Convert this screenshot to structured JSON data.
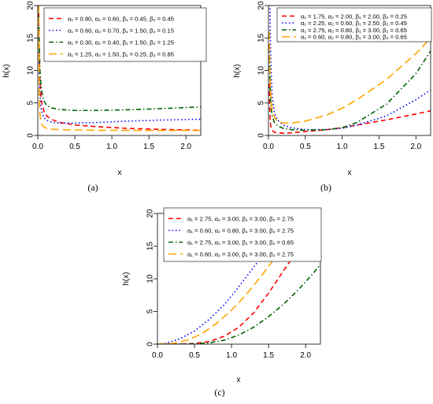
{
  "chart_data": [
    {
      "type": "line",
      "caption": "(a)",
      "xlabel": "x",
      "ylabel": "h(x)",
      "xlim": [
        0,
        2.2
      ],
      "ylim": [
        0,
        20
      ],
      "xticks": [
        "0.0",
        "0.5",
        "1.0",
        "1.5",
        "2.0"
      ],
      "yticks": [
        "0",
        "5",
        "10",
        "15",
        "20"
      ],
      "legend_position": "top-right",
      "series": [
        {
          "name": "α₁ = 0.80, α₂ = 0.60, β₁ = 0.45, β₂ = 0.45",
          "color": "#ff0000",
          "style": "dashed",
          "x": [
            0.01,
            0.02,
            0.03,
            0.05,
            0.08,
            0.12,
            0.2,
            0.3,
            0.5,
            0.8,
            1.2,
            1.6,
            2.0,
            2.2
          ],
          "y": [
            20,
            12,
            8,
            5.2,
            3.8,
            3.0,
            2.4,
            2.0,
            1.6,
            1.35,
            1.1,
            0.95,
            0.85,
            0.8
          ]
        },
        {
          "name": "α₁ = 0.60, α₂ = 0.70, β₁ = 1.50, β₂ = 0.15",
          "color": "#0000ff",
          "style": "dotted",
          "x": [
            0.01,
            0.02,
            0.03,
            0.05,
            0.08,
            0.12,
            0.2,
            0.3,
            0.5,
            0.8,
            1.2,
            1.6,
            2.0,
            2.2
          ],
          "y": [
            20,
            10,
            6,
            3.8,
            2.8,
            2.3,
            2.0,
            1.9,
            1.9,
            2.0,
            2.2,
            2.35,
            2.45,
            2.5
          ]
        },
        {
          "name": "α₁ = 0.30, α₂ = 0.40, β₁ = 1.50, β₂ = 1.25",
          "color": "#006400",
          "style": "dashdot",
          "x": [
            0.01,
            0.02,
            0.03,
            0.05,
            0.08,
            0.12,
            0.2,
            0.3,
            0.5,
            0.8,
            1.2,
            1.6,
            2.0,
            2.2
          ],
          "y": [
            20,
            14,
            10,
            7,
            5.4,
            4.6,
            4.2,
            4.0,
            3.85,
            3.85,
            3.95,
            4.1,
            4.3,
            4.4
          ]
        },
        {
          "name": "α₁ = 1.25, α₂ = 1.50, β₁ = 0.25, β₂ = 0.85",
          "color": "#ffa500",
          "style": "longdash",
          "x": [
            0.01,
            0.02,
            0.03,
            0.05,
            0.08,
            0.12,
            0.2,
            0.3,
            0.5,
            0.8,
            1.2,
            1.6,
            2.0,
            2.2
          ],
          "y": [
            20,
            6,
            3,
            1.8,
            1.3,
            1.1,
            0.95,
            0.9,
            0.85,
            0.8,
            0.78,
            0.77,
            0.76,
            0.76
          ]
        }
      ]
    },
    {
      "type": "line",
      "caption": "(b)",
      "xlabel": "x",
      "ylabel": "h(x)",
      "xlim": [
        0,
        2.2
      ],
      "ylim": [
        0,
        20
      ],
      "xticks": [
        "0.0",
        "0.5",
        "1.0",
        "1.5",
        "2.0"
      ],
      "yticks": [
        "0",
        "5",
        "10",
        "15",
        "20"
      ],
      "legend_position": "top-right",
      "series": [
        {
          "name": "α₁ = 1.75, α₂ = 2.00, β₁ = 2.00, β₂ = 0.25",
          "color": "#ff0000",
          "style": "dashed",
          "x": [
            0.01,
            0.02,
            0.03,
            0.05,
            0.08,
            0.12,
            0.2,
            0.3,
            0.5,
            0.8,
            1.0,
            1.2,
            1.6,
            2.0,
            2.2
          ],
          "y": [
            8,
            3,
            1.5,
            0.8,
            0.5,
            0.4,
            0.35,
            0.4,
            0.6,
            0.9,
            1.2,
            1.6,
            2.4,
            3.3,
            3.8
          ]
        },
        {
          "name": "α₁ = 2.25, α₂ = 0.60, β₁ = 2.50, β₂ = 0.45",
          "color": "#0000ff",
          "style": "dotted",
          "x": [
            0.01,
            0.02,
            0.03,
            0.05,
            0.08,
            0.12,
            0.2,
            0.3,
            0.5,
            0.8,
            1.0,
            1.2,
            1.6,
            2.0,
            2.2
          ],
          "y": [
            20,
            20,
            12,
            6,
            3.5,
            2.4,
            1.6,
            1.2,
            0.9,
            0.9,
            1.1,
            1.6,
            3.0,
            5.5,
            7.0
          ]
        },
        {
          "name": "α₁ = 2.75, α₂ = 0.80, β₁ = 3.00, β₂ = 0.65",
          "color": "#006400",
          "style": "dashdot",
          "x": [
            0.01,
            0.02,
            0.03,
            0.05,
            0.08,
            0.12,
            0.2,
            0.3,
            0.5,
            0.8,
            1.0,
            1.2,
            1.6,
            2.0,
            2.2
          ],
          "y": [
            14,
            8,
            5,
            3,
            2,
            1.5,
            1.1,
            0.9,
            0.8,
            0.9,
            1.2,
            2.0,
            4.8,
            9.5,
            13
          ]
        },
        {
          "name": "α₁ = 0.60, α₂ = 0.80, β₁ = 3.00, β₂ = 0.65",
          "color": "#ffa500",
          "style": "longdash",
          "x": [
            0.01,
            0.02,
            0.03,
            0.05,
            0.08,
            0.12,
            0.2,
            0.3,
            0.5,
            0.8,
            1.0,
            1.2,
            1.6,
            2.0,
            2.2
          ],
          "y": [
            16,
            10,
            6.5,
            4,
            2.8,
            2.2,
            1.9,
            1.9,
            2.2,
            3.2,
            4.2,
            5.5,
            8.6,
            12.6,
            15
          ]
        }
      ]
    },
    {
      "type": "line",
      "caption": "(c)",
      "xlabel": "x",
      "ylabel": "h(x)",
      "xlim": [
        0,
        2.2
      ],
      "ylim": [
        0,
        20
      ],
      "xticks": [
        "0.0",
        "0.5",
        "1.0",
        "1.5",
        "2.0"
      ],
      "yticks": [
        "0",
        "5",
        "10",
        "15",
        "20"
      ],
      "legend_position": "top-left",
      "series": [
        {
          "name": "α₁ = 2.75, α₂ = 3.00, β₁ = 3.00, β₂ = 2.75",
          "color": "#ff0000",
          "style": "dashed",
          "x": [
            0,
            0.3,
            0.5,
            0.7,
            0.9,
            1.1,
            1.3,
            1.5,
            1.7,
            1.9
          ],
          "y": [
            0,
            0,
            0.1,
            0.4,
            1.2,
            2.6,
            4.8,
            7.8,
            11.2,
            14.5
          ]
        },
        {
          "name": "α₁ = 0.60, α₂ = 0.80, β₁ = 3.00, β₂ = 2.75",
          "color": "#0000ff",
          "style": "dotted",
          "x": [
            0,
            0.1,
            0.3,
            0.5,
            0.7,
            0.9,
            1.1,
            1.3,
            1.5,
            1.6
          ],
          "y": [
            0,
            0.1,
            0.8,
            2,
            3.8,
            6,
            8.8,
            11.8,
            14.6,
            15
          ]
        },
        {
          "name": "α₁ = 2.75, α₂ = 3.00, β₁ = 3.00, β₂ = 0.65",
          "color": "#006400",
          "style": "dashdot",
          "x": [
            0,
            0.3,
            0.5,
            0.7,
            0.9,
            1.1,
            1.3,
            1.5,
            1.7,
            1.9,
            2.1,
            2.2
          ],
          "y": [
            0,
            0,
            0.05,
            0.2,
            0.6,
            1.4,
            2.6,
            4.2,
            6.1,
            8.3,
            10.8,
            12.2
          ]
        },
        {
          "name": "α₁ = 0.60, α₂ = 3.00, β₁ = 3.00, β₂ = 2.75",
          "color": "#ffa500",
          "style": "longdash",
          "x": [
            0,
            0.2,
            0.4,
            0.6,
            0.8,
            1.0,
            1.2,
            1.4,
            1.6,
            1.75
          ],
          "y": [
            0,
            0.1,
            0.6,
            1.6,
            3.2,
            5.2,
            7.6,
            10.4,
            13.4,
            15
          ]
        }
      ]
    }
  ]
}
